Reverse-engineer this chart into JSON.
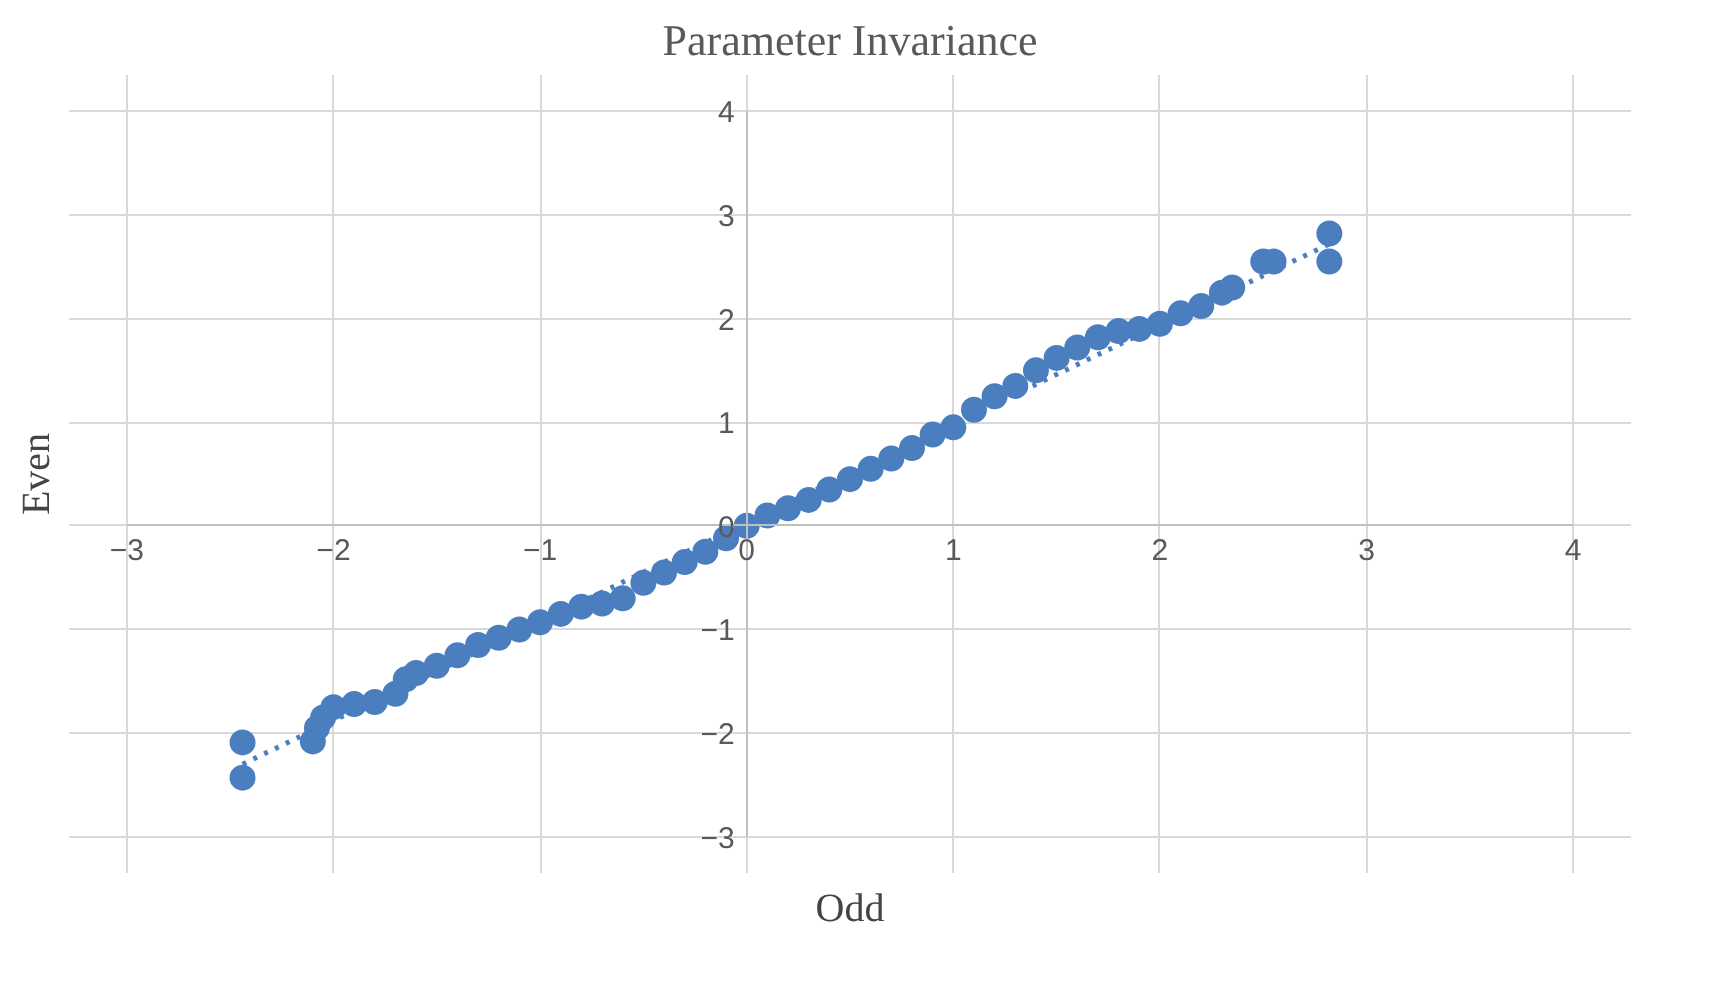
{
  "chart_data": {
    "type": "scatter",
    "title": "Parameter Invariance",
    "xlabel": "Odd",
    "ylabel": "Even",
    "xlim": [
      -3,
      4
    ],
    "ylim": [
      -3,
      4
    ],
    "xticks": [
      -3,
      -2,
      -1,
      0,
      1,
      2,
      3,
      4
    ],
    "yticks": [
      -3,
      -2,
      -1,
      0,
      1,
      2,
      3,
      4
    ],
    "grid": true,
    "marker": "circle",
    "series": [
      {
        "color": "#4a7ebf",
        "x": [
          -2.44,
          -2.44,
          -2.1,
          -2.08,
          -2.05,
          -2.0,
          -1.9,
          -1.8,
          -1.7,
          -1.65,
          -1.6,
          -1.5,
          -1.4,
          -1.3,
          -1.2,
          -1.1,
          -1.0,
          -0.9,
          -0.8,
          -0.7,
          -0.6,
          -0.5,
          -0.4,
          -0.3,
          -0.2,
          -0.1,
          0,
          0.1,
          0.2,
          0.3,
          0.4,
          0.5,
          0.6,
          0.7,
          0.8,
          0.9,
          1.0,
          1.1,
          1.2,
          1.3,
          1.4,
          1.5,
          1.6,
          1.7,
          1.8,
          1.9,
          2.0,
          2.1,
          2.2,
          2.3,
          2.35,
          2.5,
          2.55,
          2.82,
          2.82
        ],
        "values": [
          -2.09,
          -2.43,
          -2.08,
          -1.95,
          -1.85,
          -1.75,
          -1.72,
          -1.7,
          -1.62,
          -1.48,
          -1.42,
          -1.35,
          -1.25,
          -1.15,
          -1.08,
          -1.0,
          -0.93,
          -0.85,
          -0.78,
          -0.75,
          -0.7,
          -0.55,
          -0.45,
          -0.35,
          -0.25,
          -0.12,
          0,
          0.1,
          0.17,
          0.25,
          0.35,
          0.45,
          0.55,
          0.65,
          0.75,
          0.88,
          0.95,
          1.12,
          1.25,
          1.35,
          1.5,
          1.62,
          1.72,
          1.82,
          1.88,
          1.9,
          1.95,
          2.05,
          2.12,
          2.25,
          2.3,
          2.55,
          2.55,
          2.82,
          2.55
        ]
      },
      {
        "type": "line",
        "line_style": "dotted",
        "marker": "none",
        "color": "#4a7ebf",
        "x": [
          -2.44,
          2.82
        ],
        "values": [
          -2.3,
          2.72
        ]
      }
    ]
  }
}
